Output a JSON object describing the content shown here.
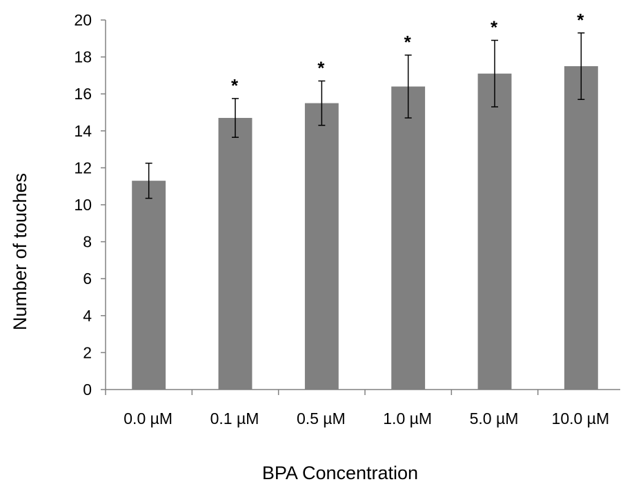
{
  "chart_data": {
    "type": "bar",
    "title": "",
    "xlabel": "BPA Concentration",
    "ylabel": "Number of touches",
    "categories": [
      "0.0 µM",
      "0.1 µM",
      "0.5 µM",
      "1.0 µM",
      "5.0 µM",
      "10.0 µM"
    ],
    "values": [
      11.3,
      14.7,
      15.5,
      16.4,
      17.1,
      17.5
    ],
    "error": [
      0.95,
      1.05,
      1.2,
      1.7,
      1.8,
      1.8
    ],
    "significance": [
      "",
      "*",
      "*",
      "*",
      "*",
      "*"
    ],
    "ylim": [
      0,
      20
    ],
    "yticks": [
      0,
      2,
      4,
      6,
      8,
      10,
      12,
      14,
      16,
      18,
      20
    ],
    "grid": false,
    "legend": "none",
    "bar_color": "#808080"
  }
}
